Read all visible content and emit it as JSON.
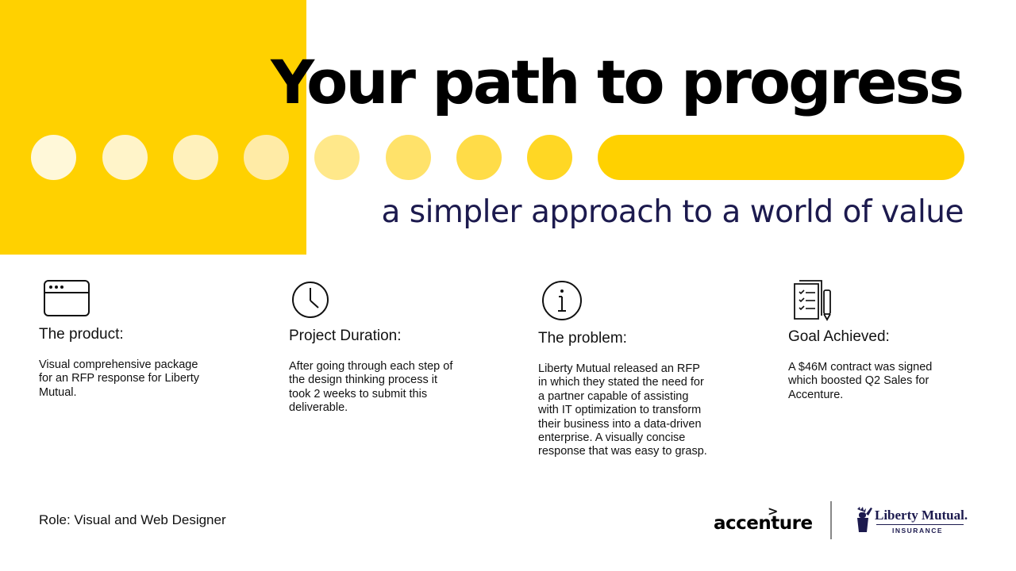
{
  "header": {
    "title": "Your path to progress",
    "subtitle": "a simpler approach to a world of value"
  },
  "progress": {
    "dot_colors": [
      "#FFF8D9",
      "#FFF4C9",
      "#FFF1BC",
      "#FFEBA6",
      "#FFE88A",
      "#FFE26A",
      "#FFDC48",
      "#FFD724"
    ],
    "bar_color": "#FFD100",
    "accent": "#FFD100"
  },
  "sections": [
    {
      "icon": "browser-window-icon",
      "heading": "The product:",
      "body": "Visual comprehensive package for an RFP response for Liberty Mutual."
    },
    {
      "icon": "clock-icon",
      "heading": "Project Duration:",
      "body": "After going through each step of the design thinking process it took 2 weeks to submit this deliverable."
    },
    {
      "icon": "info-icon",
      "heading": "The problem:",
      "body": "Liberty Mutual released an RFP in which they stated the need for a partner capable of assisting with IT optimization to transform their business into a data-driven enterprise. A visually concise response that was easy to grasp."
    },
    {
      "icon": "checklist-document-icon",
      "heading": "Goal Achieved:",
      "body": "A $46M contract was signed which boosted Q2 Sales for Accenture."
    }
  ],
  "footer": {
    "role": "Role: Visual and Web Designer",
    "logos": {
      "accenture": "accenture",
      "accenture_mark": ">",
      "liberty_name": "Liberty Mutual.",
      "liberty_sub": "INSURANCE"
    }
  },
  "colors": {
    "yellow": "#FFD100",
    "navy": "#1c1a4e"
  }
}
